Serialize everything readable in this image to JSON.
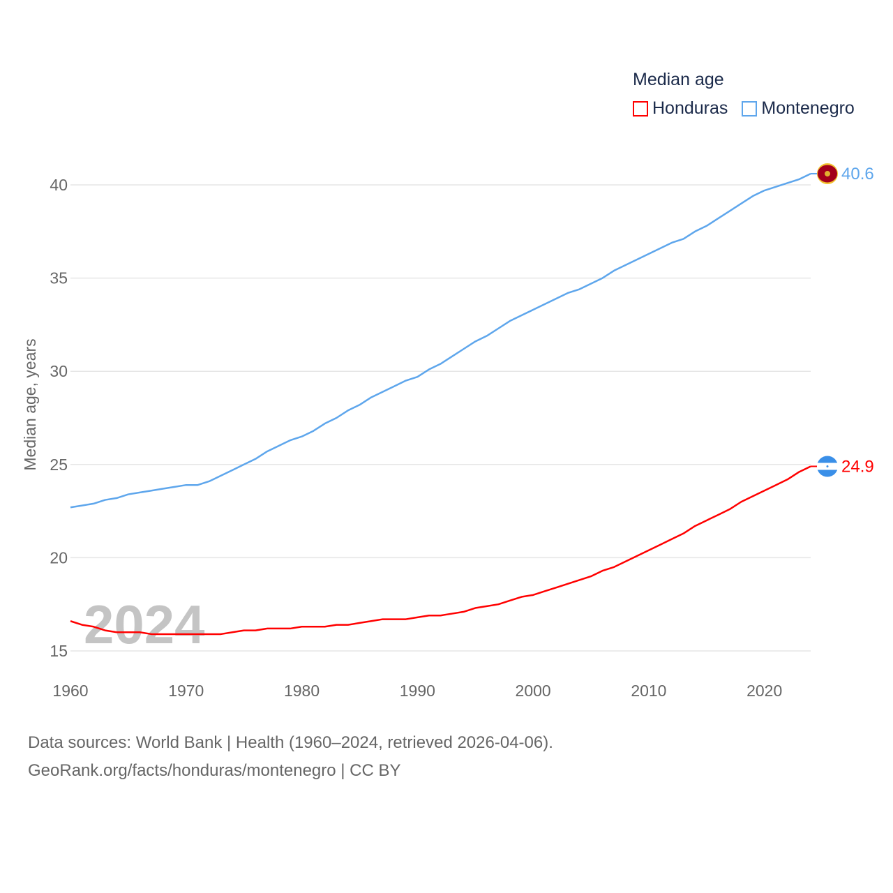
{
  "chart_data": {
    "type": "line",
    "title": "Median age",
    "xlabel": "",
    "ylabel": "Median age, years",
    "xlim": [
      1960,
      2024
    ],
    "ylim": [
      15,
      41
    ],
    "xticks": [
      1960,
      1970,
      1980,
      1990,
      2000,
      2010,
      2020
    ],
    "yticks": [
      15,
      20,
      25,
      30,
      35,
      40
    ],
    "grid": true,
    "legend_position": "top-right",
    "watermark_year": "2024",
    "x": [
      1960,
      1961,
      1962,
      1963,
      1964,
      1965,
      1966,
      1967,
      1968,
      1969,
      1970,
      1971,
      1972,
      1973,
      1974,
      1975,
      1976,
      1977,
      1978,
      1979,
      1980,
      1981,
      1982,
      1983,
      1984,
      1985,
      1986,
      1987,
      1988,
      1989,
      1990,
      1991,
      1992,
      1993,
      1994,
      1995,
      1996,
      1997,
      1998,
      1999,
      2000,
      2001,
      2002,
      2003,
      2004,
      2005,
      2006,
      2007,
      2008,
      2009,
      2010,
      2011,
      2012,
      2013,
      2014,
      2015,
      2016,
      2017,
      2018,
      2019,
      2020,
      2021,
      2022,
      2023,
      2024
    ],
    "series": [
      {
        "name": "Honduras",
        "color": "#ff0000",
        "end_label": "24.9",
        "flag": "honduras-flag",
        "values": [
          16.6,
          16.4,
          16.3,
          16.1,
          16.0,
          16.0,
          16.0,
          15.9,
          15.9,
          15.9,
          15.9,
          15.9,
          15.9,
          15.9,
          16.0,
          16.1,
          16.1,
          16.2,
          16.2,
          16.2,
          16.3,
          16.3,
          16.3,
          16.4,
          16.4,
          16.5,
          16.6,
          16.7,
          16.7,
          16.7,
          16.8,
          16.9,
          16.9,
          17.0,
          17.1,
          17.3,
          17.4,
          17.5,
          17.7,
          17.9,
          18.0,
          18.2,
          18.4,
          18.6,
          18.8,
          19.0,
          19.3,
          19.5,
          19.8,
          20.1,
          20.4,
          20.7,
          21.0,
          21.3,
          21.7,
          22.0,
          22.3,
          22.6,
          23.0,
          23.3,
          23.6,
          23.9,
          24.2,
          24.6,
          24.9
        ]
      },
      {
        "name": "Montenegro",
        "color": "#5ea6ec",
        "end_label": "40.6",
        "flag": "montenegro-flag",
        "values": [
          22.7,
          22.8,
          22.9,
          23.1,
          23.2,
          23.4,
          23.5,
          23.6,
          23.7,
          23.8,
          23.9,
          23.9,
          24.1,
          24.4,
          24.7,
          25.0,
          25.3,
          25.7,
          26.0,
          26.3,
          26.5,
          26.8,
          27.2,
          27.5,
          27.9,
          28.2,
          28.6,
          28.9,
          29.2,
          29.5,
          29.7,
          30.1,
          30.4,
          30.8,
          31.2,
          31.6,
          31.9,
          32.3,
          32.7,
          33.0,
          33.3,
          33.6,
          33.9,
          34.2,
          34.4,
          34.7,
          35.0,
          35.4,
          35.7,
          36.0,
          36.3,
          36.6,
          36.9,
          37.1,
          37.5,
          37.8,
          38.2,
          38.6,
          39.0,
          39.4,
          39.7,
          39.9,
          40.1,
          40.3,
          40.6
        ]
      }
    ]
  },
  "source": {
    "line1": "Data sources: World Bank | Health (1960–2024, retrieved 2026-04-06).",
    "line2": "GeoRank.org/facts/honduras/montenegro | CC BY"
  }
}
